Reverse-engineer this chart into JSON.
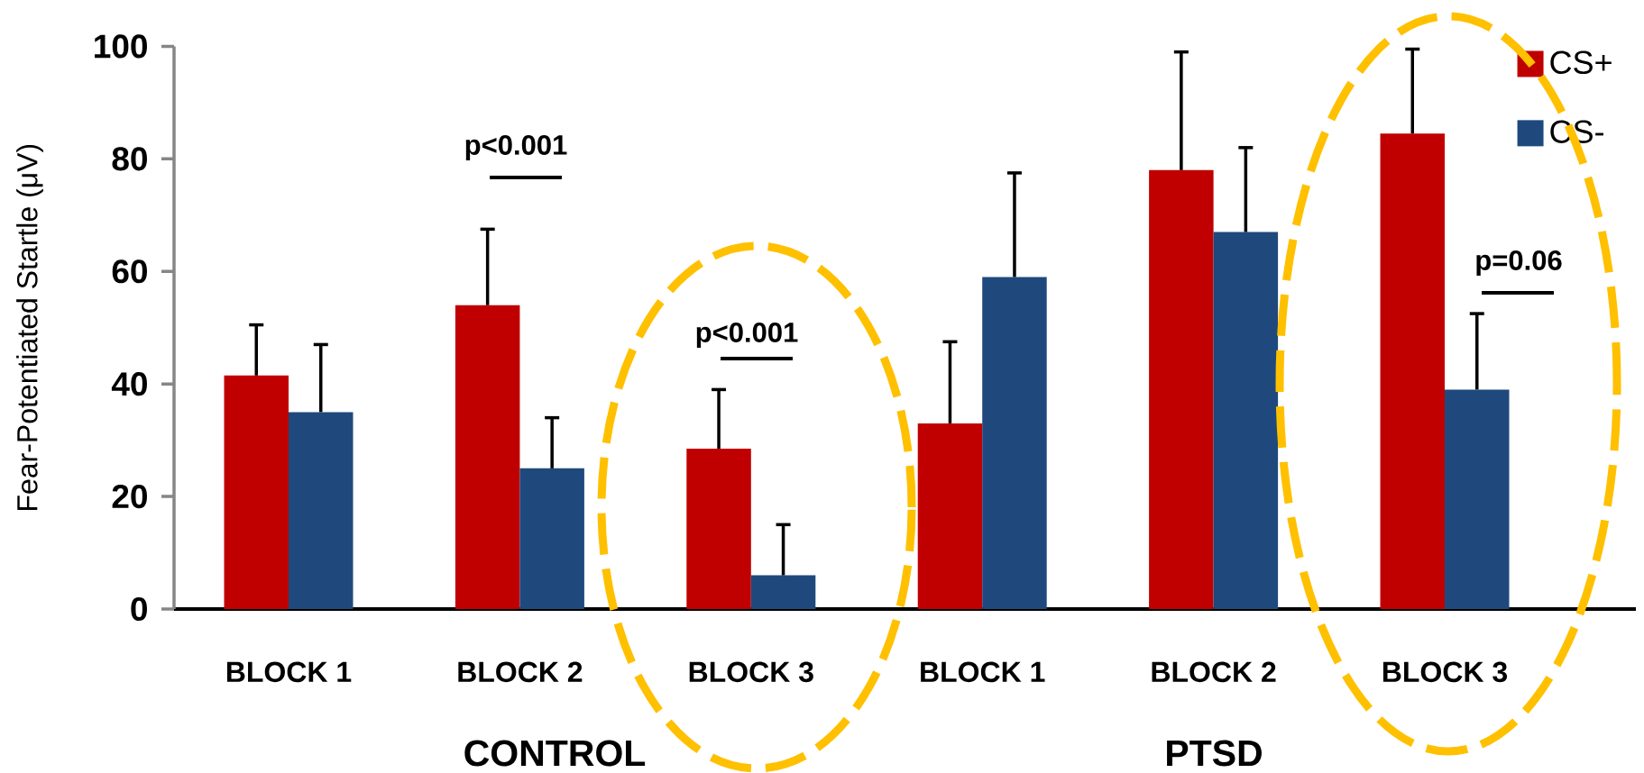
{
  "chart_data": {
    "type": "bar",
    "ylabel": "Fear-Potentiated Startle (μV)",
    "categories": [
      "BLOCK 1",
      "BLOCK 2",
      "BLOCK 3",
      "BLOCK 1",
      "BLOCK 2",
      "BLOCK 3"
    ],
    "series": [
      {
        "name": "CS+",
        "color": "#c00000",
        "values": [
          41.5,
          54,
          28.5,
          33,
          78,
          84.5
        ],
        "errors": [
          [
            41.5,
            50.5
          ],
          [
            54,
            67.5
          ],
          [
            28.5,
            39
          ],
          [
            33,
            47.5
          ],
          [
            78,
            99
          ],
          [
            84.5,
            99.5
          ]
        ]
      },
      {
        "name": "CS-",
        "color": "#1f497d",
        "values": [
          35,
          25,
          6,
          59,
          67,
          39
        ],
        "errors": [
          [
            35,
            47
          ],
          [
            25,
            34
          ],
          [
            6,
            15
          ],
          [
            59,
            77.5
          ],
          [
            67,
            82
          ],
          [
            39,
            52.5
          ]
        ]
      }
    ],
    "ylim": [
      0,
      100
    ],
    "yticks": [
      0,
      20,
      40,
      60,
      80,
      100
    ],
    "legend": "top right",
    "annotations": [
      "p<0.001",
      "p<0.001",
      "p=0.06",
      "CONTROL",
      "PTSD"
    ]
  }
}
